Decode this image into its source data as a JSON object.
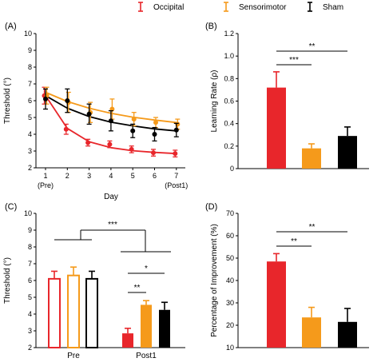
{
  "legend": {
    "items": [
      {
        "label": "Occipital",
        "color": "#e8262b"
      },
      {
        "label": "Sensorimotor",
        "color": "#f59a1b"
      },
      {
        "label": "Sham",
        "color": "#000000"
      }
    ]
  },
  "chart_data": [
    {
      "panel": "(A)",
      "type": "line",
      "xlabel": "Day",
      "ylabel": "Threshold (°)",
      "ylim": [
        2,
        10
      ],
      "yticks": [
        2,
        3,
        4,
        5,
        6,
        7,
        8,
        9,
        10
      ],
      "x": [
        1,
        2,
        3,
        4,
        5,
        6,
        7
      ],
      "xticks": [
        "1",
        "2",
        "3",
        "4",
        "5",
        "6",
        "7"
      ],
      "xsublabels": {
        "first": "(Pre)",
        "last": "(Post1)"
      },
      "series": [
        {
          "name": "Occipital",
          "color": "#e8262b",
          "values": [
            6.3,
            4.3,
            3.5,
            3.4,
            3.1,
            2.9,
            2.85
          ],
          "errors": [
            0.5,
            0.3,
            0.2,
            0.2,
            0.2,
            0.2,
            0.2
          ]
        },
        {
          "name": "Sensorimotor",
          "color": "#f59a1b",
          "values": [
            6.3,
            5.9,
            5.3,
            5.5,
            4.9,
            4.7,
            4.6
          ],
          "errors": [
            0.5,
            0.6,
            0.6,
            0.6,
            0.4,
            0.3,
            0.3
          ]
        },
        {
          "name": "Sham",
          "color": "#000000",
          "values": [
            6.1,
            6.0,
            5.2,
            4.8,
            4.2,
            4.0,
            4.25
          ],
          "errors": [
            0.6,
            0.7,
            0.6,
            0.6,
            0.4,
            0.4,
            0.4
          ]
        }
      ],
      "fits": [
        {
          "name": "Occipital",
          "color": "#e8262b",
          "values": [
            6.3,
            4.35,
            3.55,
            3.2,
            3.02,
            2.92,
            2.85
          ]
        },
        {
          "name": "Sensorimotor",
          "color": "#f59a1b",
          "values": [
            6.5,
            5.95,
            5.55,
            5.25,
            5.02,
            4.85,
            4.7
          ]
        },
        {
          "name": "Sham",
          "color": "#000000",
          "values": [
            6.3,
            5.55,
            5.05,
            4.72,
            4.5,
            4.32,
            4.2
          ]
        }
      ],
      "grid": false
    },
    {
      "panel": "(B)",
      "type": "bar",
      "ylabel": "Learning Rate (ρ)",
      "ylim": [
        0,
        1.2
      ],
      "yticks": [
        "0",
        "0.2",
        "0.4",
        "0.6",
        "0.8",
        "1.0",
        "1.2"
      ],
      "categories": [
        "Occipital",
        "Sensorimotor",
        "Sham"
      ],
      "colors": [
        "#e8262b",
        "#f59a1b",
        "#000000"
      ],
      "values": [
        0.72,
        0.18,
        0.29
      ],
      "errors": [
        0.14,
        0.04,
        0.08
      ],
      "significance": [
        {
          "pair": [
            0,
            1
          ],
          "label": "***"
        },
        {
          "pair": [
            0,
            2
          ],
          "label": "**"
        }
      ],
      "grid": false
    },
    {
      "panel": "(C)",
      "type": "bar",
      "ylabel": "Threshold (°)",
      "ylim": [
        2,
        10
      ],
      "yticks": [
        2,
        3,
        4,
        5,
        6,
        7,
        8,
        9,
        10
      ],
      "categories": [
        "Pre",
        "Post1"
      ],
      "series": [
        {
          "name": "Occipital",
          "color": "#e8262b",
          "values": [
            6.1,
            2.85
          ],
          "errors": [
            0.45,
            0.3
          ],
          "hollow": [
            true,
            false
          ]
        },
        {
          "name": "Sensorimotor",
          "color": "#f59a1b",
          "values": [
            6.3,
            4.55
          ],
          "errors": [
            0.5,
            0.25
          ],
          "hollow": [
            true,
            false
          ]
        },
        {
          "name": "Sham",
          "color": "#000000",
          "values": [
            6.1,
            4.25
          ],
          "errors": [
            0.45,
            0.45
          ],
          "hollow": [
            true,
            false
          ]
        }
      ],
      "significance": [
        {
          "between": "Pre vs Post1",
          "label": "***"
        },
        {
          "pair": [
            "Occipital",
            "Sham"
          ],
          "group": "Post1",
          "label": "*"
        },
        {
          "pair": [
            "Occipital",
            "Sensorimotor"
          ],
          "group": "Post1",
          "label": "**"
        }
      ],
      "grid": false
    },
    {
      "panel": "(D)",
      "type": "bar",
      "ylabel": "Percentage of Improvement (%)",
      "ylim": [
        10,
        70
      ],
      "yticks": [
        10,
        20,
        30,
        40,
        50,
        60,
        70
      ],
      "categories": [
        "Occipital",
        "Sensorimotor",
        "Sham"
      ],
      "colors": [
        "#e8262b",
        "#f59a1b",
        "#000000"
      ],
      "values": [
        48.5,
        23.5,
        21.5
      ],
      "errors": [
        3.5,
        4.5,
        6.0
      ],
      "significance": [
        {
          "pair": [
            0,
            1
          ],
          "label": "**"
        },
        {
          "pair": [
            0,
            2
          ],
          "label": "**"
        }
      ],
      "grid": false
    }
  ]
}
